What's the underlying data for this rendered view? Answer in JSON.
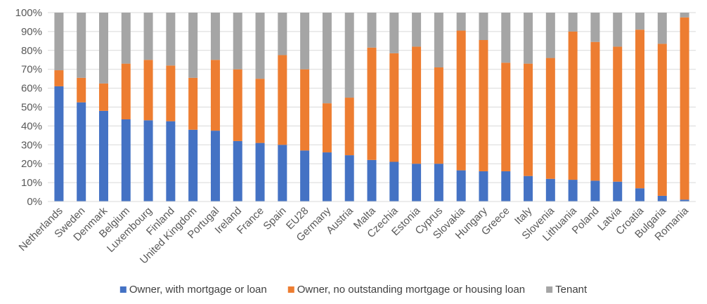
{
  "chart_data": {
    "type": "bar",
    "stacked": true,
    "percent_stacked": true,
    "title": "",
    "xlabel": "",
    "ylabel": "",
    "ylim": [
      0,
      100
    ],
    "y_ticks": [
      "0%",
      "10%",
      "20%",
      "30%",
      "40%",
      "50%",
      "60%",
      "70%",
      "80%",
      "90%",
      "100%"
    ],
    "grid": true,
    "legend_position": "bottom",
    "categories": [
      "Netherlands",
      "Sweden",
      "Denmark",
      "Belgium",
      "Luxembourg",
      "Finland",
      "United Kingdom",
      "Portugal",
      "Ireland",
      "France",
      "Spain",
      "EU28",
      "Germany",
      "Austria",
      "Malta",
      "Czechia",
      "Estonia",
      "Cyprus",
      "Slovakia",
      "Hungary",
      "Greece",
      "Italy",
      "Slovenia",
      "Lithuania",
      "Poland",
      "Latvia",
      "Croatia",
      "Bulgaria",
      "Romania"
    ],
    "series": [
      {
        "name": "Owner, with mortgage or loan",
        "color": "#4472C4",
        "values": [
          61,
          52.5,
          48,
          43.5,
          43,
          42.5,
          38,
          37.5,
          32,
          31,
          30,
          27,
          26,
          24.5,
          22,
          21,
          20,
          20,
          16.5,
          16,
          16,
          13.5,
          12,
          11.5,
          11,
          10.5,
          7,
          3,
          1
        ]
      },
      {
        "name": "Owner, no outstanding mortgage or housing loan",
        "color": "#ED7D31",
        "values": [
          8.5,
          13,
          14.5,
          29.5,
          32,
          29.5,
          27.5,
          37.5,
          38,
          34,
          47.5,
          43,
          26,
          30.5,
          59.5,
          57.5,
          62,
          51,
          74,
          69.5,
          57.5,
          59.5,
          64,
          78.5,
          73.5,
          71.5,
          84,
          80.5,
          96.5
        ]
      },
      {
        "name": "Tenant",
        "color": "#A5A5A5",
        "values": [
          30.5,
          34.5,
          37.5,
          27,
          25,
          28,
          34.5,
          25,
          30,
          35,
          22.5,
          30,
          48,
          45,
          18.5,
          21.5,
          18,
          29,
          9.5,
          14.5,
          26.5,
          27,
          24,
          10,
          15.5,
          18,
          9,
          16.5,
          2.5
        ]
      }
    ]
  }
}
